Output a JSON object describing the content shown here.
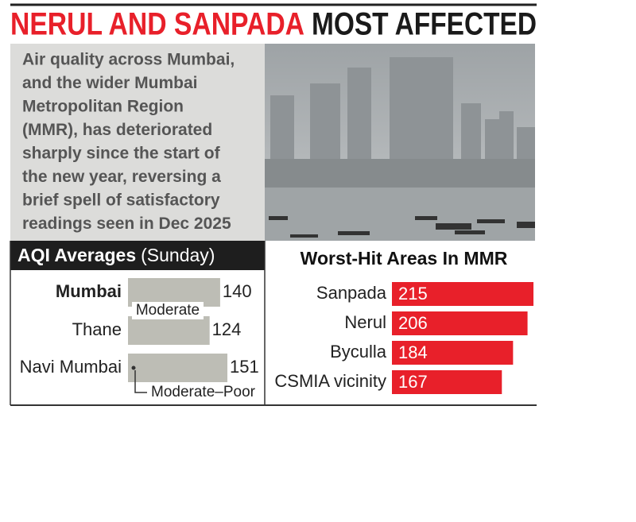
{
  "header": {
    "title_highlight": "NERUL AND SANPADA",
    "title_rest": "MOST AFFECTED"
  },
  "description": [
    "Air quality across Mumbai,",
    "and the wider Mumbai",
    "Metropolitan Region",
    "(MMR), has deteriorated",
    "sharply since the start of",
    "the new year, reversing a",
    "brief spell of satisfactory",
    "readings seen in Dec 2025"
  ],
  "chart_data": [
    {
      "type": "bar",
      "orientation": "horizontal",
      "title": "AQI Averages",
      "subtitle": "(Sunday)",
      "categories": [
        "Mumbai",
        "Thane",
        "Navi Mumbai"
      ],
      "values": [
        140,
        124,
        151
      ],
      "color": "#bdbdb5",
      "annotations": [
        "Moderate",
        "Moderate–Poor"
      ]
    },
    {
      "type": "bar",
      "orientation": "horizontal",
      "title": "Worst-Hit Areas In MMR",
      "categories": [
        "Sanpada",
        "Nerul",
        "Byculla",
        "CSMIA vicinity"
      ],
      "values": [
        215,
        206,
        184,
        167
      ],
      "color": "#e8202a"
    }
  ]
}
